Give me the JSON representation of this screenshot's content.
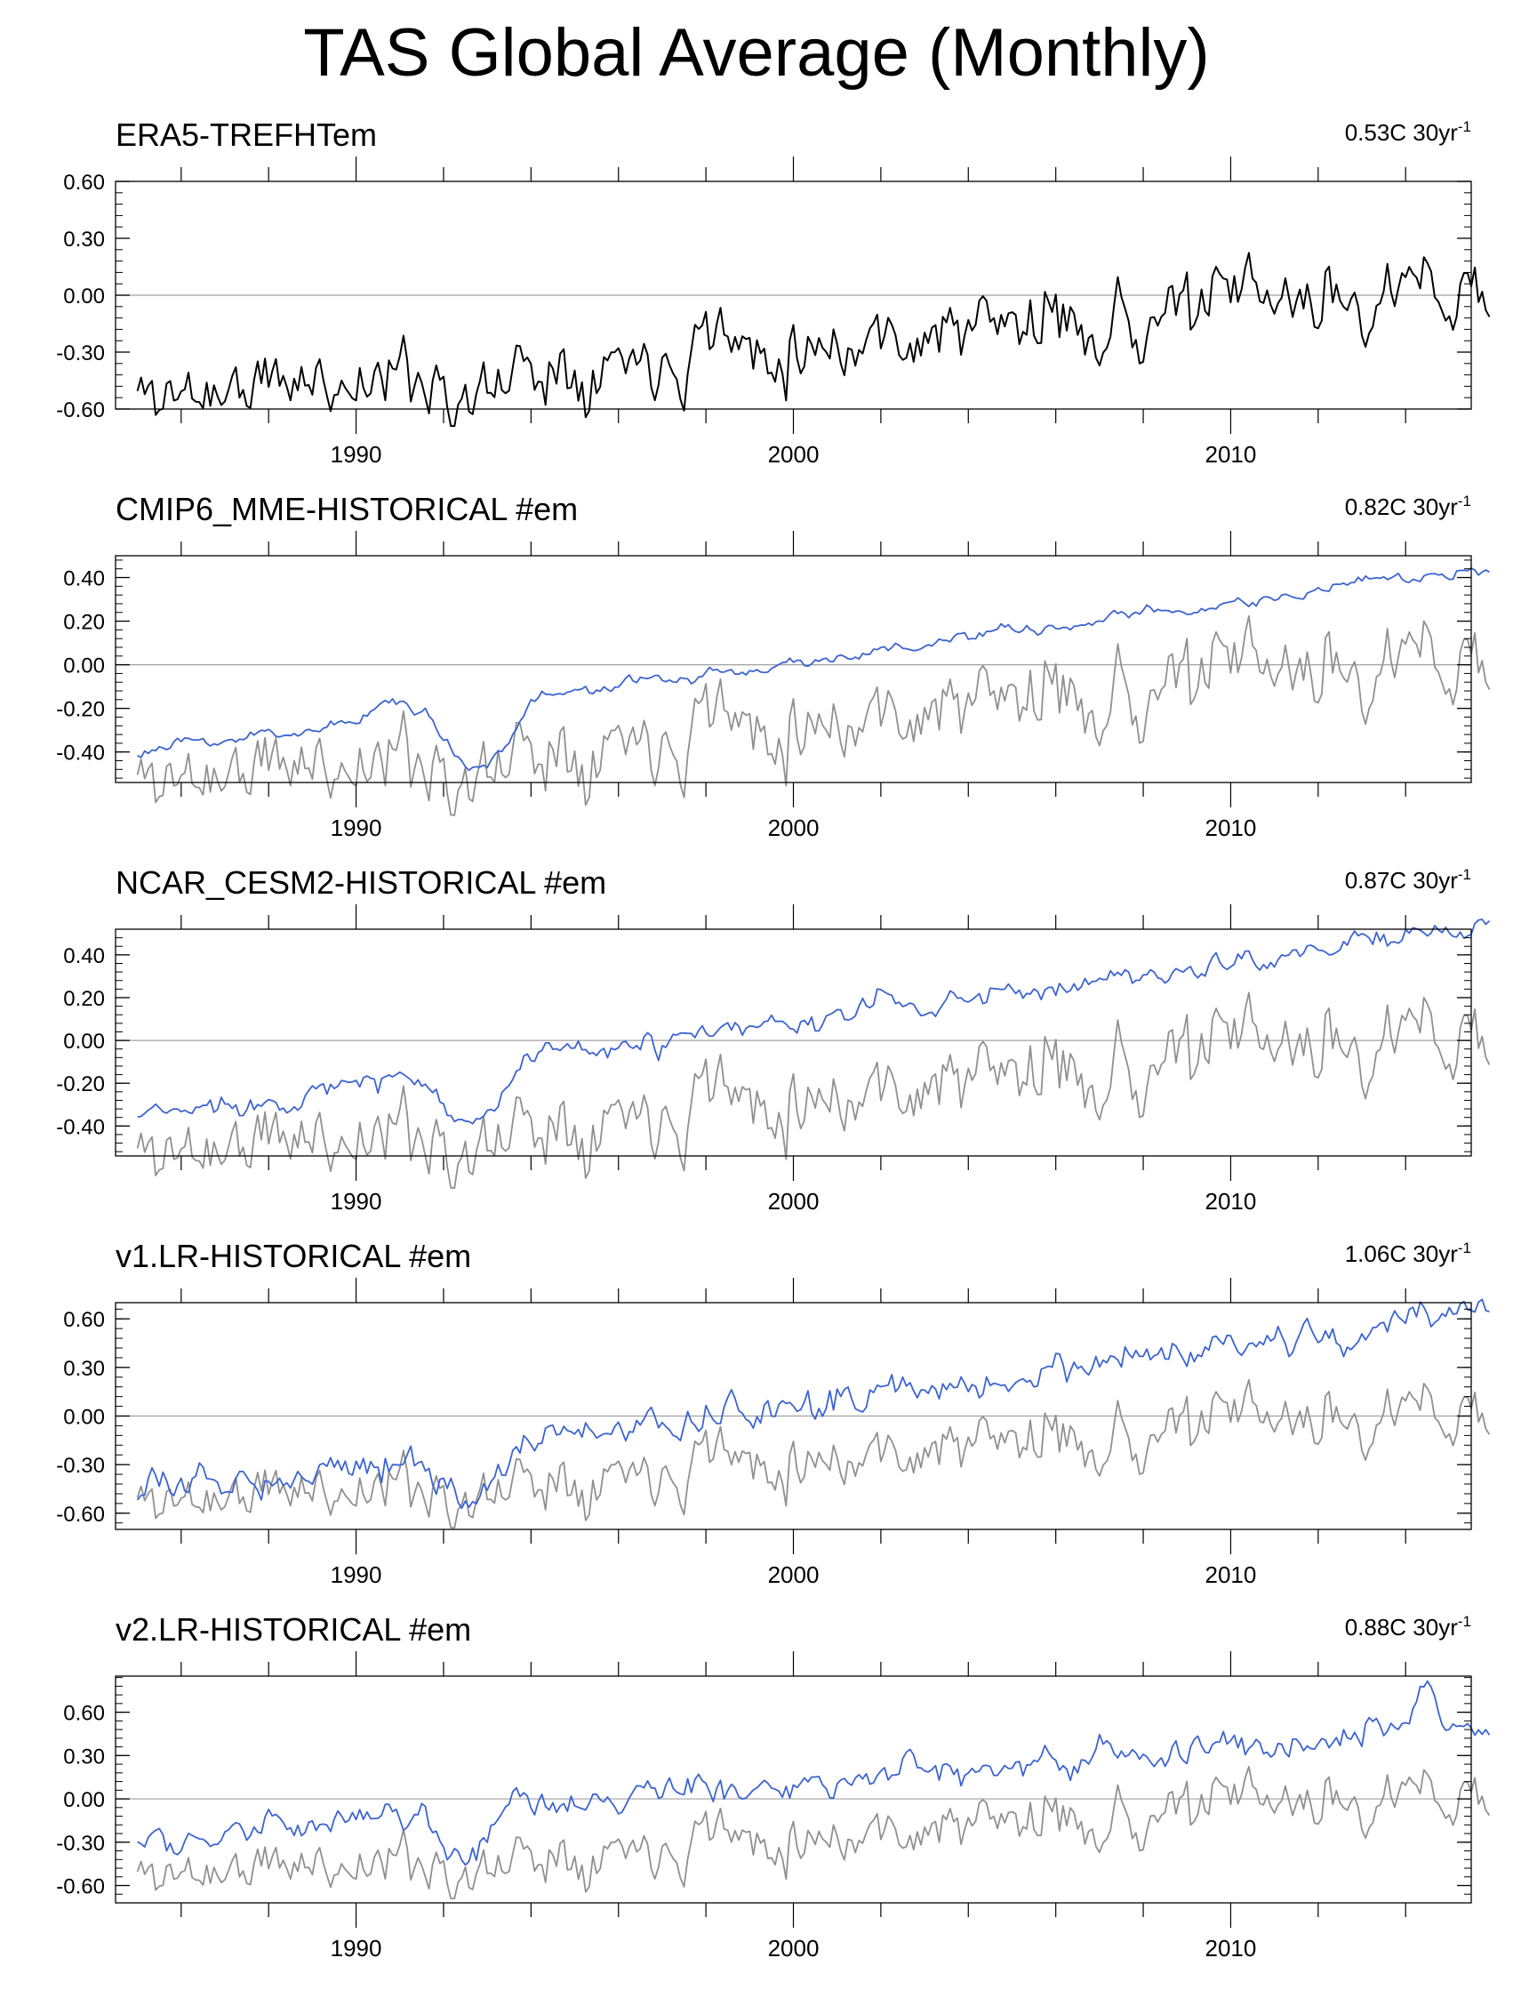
{
  "title": "TAS Global Average (Monthly)",
  "chart_data": [
    {
      "type": "line",
      "title": "ERA5-TREFHTem",
      "trend_value": "0.53C 30yr",
      "trend_exp": "-1",
      "xlabel": "",
      "ylabel": "",
      "xlim": [
        1984.5,
        2015.5
      ],
      "ylim": [
        -0.6,
        0.6
      ],
      "yticks": [
        -0.6,
        -0.3,
        0.0,
        0.3,
        0.6
      ],
      "ytick_labels": [
        "-0.60",
        "-0.30",
        "0.00",
        "0.30",
        "0.60"
      ],
      "xticks": [
        1990,
        2000,
        2010
      ],
      "xtick_labels": [
        "1990",
        "2000",
        "2010"
      ],
      "zero_line": true,
      "series": [
        {
          "name": "ERA5",
          "color": "#000000",
          "seed": 11,
          "start": -0.53,
          "trend": 0.0185,
          "amp": 0.085,
          "smooth": 0.55,
          "events": [
            [
              1991.8,
              1993.6,
              -0.18
            ],
            [
              1997.6,
              1998.6,
              0.16
            ],
            [
              2010.0,
              2010.5,
              0.12
            ],
            [
              2007.7,
              2008.3,
              -0.12
            ]
          ]
        }
      ]
    },
    {
      "type": "line",
      "title": "CMIP6_MME-HISTORICAL  #em",
      "trend_value": "0.82C 30yr",
      "trend_exp": "-1",
      "xlabel": "",
      "ylabel": "",
      "xlim": [
        1984.5,
        2015.5
      ],
      "ylim": [
        -0.54,
        0.5
      ],
      "yticks": [
        -0.4,
        -0.2,
        0.0,
        0.2,
        0.4
      ],
      "ytick_labels": [
        "-0.40",
        "-0.20",
        "0.00",
        "0.20",
        "0.40"
      ],
      "xticks": [
        1990,
        2000,
        2010
      ],
      "xtick_labels": [
        "1990",
        "2000",
        "2010"
      ],
      "zero_line": true,
      "series": [
        {
          "name": "ERA5",
          "color": "#909090",
          "seed": 11,
          "start": -0.53,
          "trend": 0.0185,
          "amp": 0.085,
          "smooth": 0.55,
          "events": [
            [
              1991.8,
              1993.6,
              -0.18
            ],
            [
              1997.6,
              1998.6,
              0.16
            ],
            [
              2010.0,
              2010.5,
              0.12
            ],
            [
              2007.7,
              2008.3,
              -0.12
            ]
          ]
        },
        {
          "name": "CMIP6_MME",
          "color": "#3c64d2",
          "seed": 23,
          "start": -0.4,
          "trend": 0.0273,
          "amp": 0.018,
          "smooth": 0.7,
          "events": [
            [
              1991.6,
              1994.0,
              -0.27
            ],
            [
              1990.0,
              1991.5,
              0.08
            ]
          ]
        }
      ]
    },
    {
      "type": "line",
      "title": "NCAR_CESM2-HISTORICAL  #em",
      "trend_value": "0.87C 30yr",
      "trend_exp": "-1",
      "xlabel": "",
      "ylabel": "",
      "xlim": [
        1984.5,
        2015.5
      ],
      "ylim": [
        -0.54,
        0.52
      ],
      "yticks": [
        -0.4,
        -0.2,
        0.0,
        0.2,
        0.4
      ],
      "ytick_labels": [
        "-0.40",
        "-0.20",
        "0.00",
        "0.20",
        "0.40"
      ],
      "xticks": [
        1990,
        2000,
        2010
      ],
      "xtick_labels": [
        "1990",
        "2000",
        "2010"
      ],
      "zero_line": true,
      "series": [
        {
          "name": "ERA5",
          "color": "#909090",
          "seed": 11,
          "start": -0.53,
          "trend": 0.0185,
          "amp": 0.085,
          "smooth": 0.55,
          "events": [
            [
              1991.8,
              1993.6,
              -0.18
            ],
            [
              1997.6,
              1998.6,
              0.16
            ],
            [
              2010.0,
              2010.5,
              0.12
            ],
            [
              2007.7,
              2008.3,
              -0.12
            ]
          ]
        },
        {
          "name": "NCAR_CESM2",
          "color": "#3c64d2",
          "seed": 37,
          "start": -0.36,
          "trend": 0.029,
          "amp": 0.03,
          "smooth": 0.65,
          "events": [
            [
              1991.6,
              1993.8,
              -0.22
            ],
            [
              2001.8,
              2002.6,
              0.1
            ]
          ]
        }
      ]
    },
    {
      "type": "line",
      "title": "v1.LR-HISTORICAL  #em",
      "trend_value": "1.06C 30yr",
      "trend_exp": "-1",
      "xlabel": "",
      "ylabel": "",
      "xlim": [
        1984.5,
        2015.5
      ],
      "ylim": [
        -0.7,
        0.7
      ],
      "yticks": [
        -0.6,
        -0.3,
        0.0,
        0.3,
        0.6
      ],
      "ytick_labels": [
        "-0.60",
        "-0.30",
        "0.00",
        "0.30",
        "0.60"
      ],
      "xticks": [
        1990,
        2000,
        2010
      ],
      "xtick_labels": [
        "1990",
        "2000",
        "2010"
      ],
      "zero_line": true,
      "series": [
        {
          "name": "ERA5",
          "color": "#909090",
          "seed": 11,
          "start": -0.53,
          "trend": 0.0185,
          "amp": 0.085,
          "smooth": 0.55,
          "events": [
            [
              1991.8,
              1993.6,
              -0.18
            ],
            [
              1997.6,
              1998.6,
              0.16
            ],
            [
              2010.0,
              2010.5,
              0.12
            ],
            [
              2007.7,
              2008.3,
              -0.12
            ]
          ]
        },
        {
          "name": "v1.LR",
          "color": "#3c64d2",
          "seed": 53,
          "start": -0.47,
          "trend": 0.0355,
          "amp": 0.05,
          "smooth": 0.6,
          "events": [
            [
              1991.5,
              1993.8,
              -0.32
            ],
            [
              2014.0,
              2014.6,
              0.12
            ]
          ]
        }
      ]
    },
    {
      "type": "line",
      "title": "v2.LR-HISTORICAL  #em",
      "trend_value": "0.88C 30yr",
      "trend_exp": "-1",
      "xlabel": "",
      "ylabel": "",
      "xlim": [
        1984.5,
        2015.5
      ],
      "ylim": [
        -0.72,
        0.85
      ],
      "yticks": [
        -0.6,
        -0.3,
        0.0,
        0.3,
        0.6
      ],
      "ytick_labels": [
        "-0.60",
        "-0.30",
        "0.00",
        "0.30",
        "0.60"
      ],
      "xticks": [
        1990,
        2000,
        2010
      ],
      "xtick_labels": [
        "1990",
        "2000",
        "2010"
      ],
      "zero_line": true,
      "series": [
        {
          "name": "ERA5",
          "color": "#909090",
          "seed": 11,
          "start": -0.53,
          "trend": 0.0185,
          "amp": 0.085,
          "smooth": 0.55,
          "events": [
            [
              1991.8,
              1993.6,
              -0.18
            ],
            [
              1997.6,
              1998.6,
              0.16
            ],
            [
              2010.0,
              2010.5,
              0.12
            ],
            [
              2007.7,
              2008.3,
              -0.12
            ]
          ]
        },
        {
          "name": "v2.LR",
          "color": "#3c64d2",
          "seed": 71,
          "start": -0.3,
          "trend": 0.0275,
          "amp": 0.05,
          "smooth": 0.6,
          "events": [
            [
              1991.6,
              1993.5,
              -0.32
            ],
            [
              2014.1,
              2014.8,
              0.3
            ]
          ]
        }
      ]
    }
  ]
}
